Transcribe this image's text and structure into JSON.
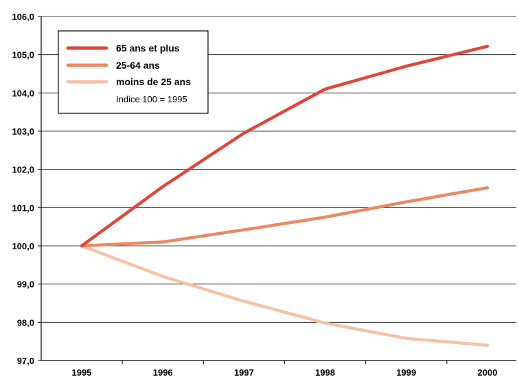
{
  "chart_data": {
    "type": "line",
    "x": [
      "1995",
      "1996",
      "1997",
      "1998",
      "1999",
      "2000"
    ],
    "ylim": [
      97.0,
      106.0
    ],
    "yticks": [
      "97,0",
      "98,0",
      "99,0",
      "100,0",
      "101,0",
      "102,0",
      "103,0",
      "104,0",
      "105,0",
      "106,0"
    ],
    "grid": true,
    "legend_position": "top-left",
    "legend_note": "Indice 100 = 1995",
    "series": [
      {
        "name": "65 ans et plus",
        "color": "#e0463a",
        "values": [
          100.0,
          101.55,
          102.95,
          104.1,
          104.7,
          105.22
        ]
      },
      {
        "name": "25-64 ans",
        "color": "#ea8a63",
        "values": [
          100.0,
          100.1,
          100.42,
          100.75,
          101.15,
          101.52
        ]
      },
      {
        "name": "moins de 25 ans",
        "color": "#f6c2a6",
        "values": [
          100.0,
          99.2,
          98.55,
          97.98,
          97.58,
          97.4
        ]
      }
    ]
  }
}
